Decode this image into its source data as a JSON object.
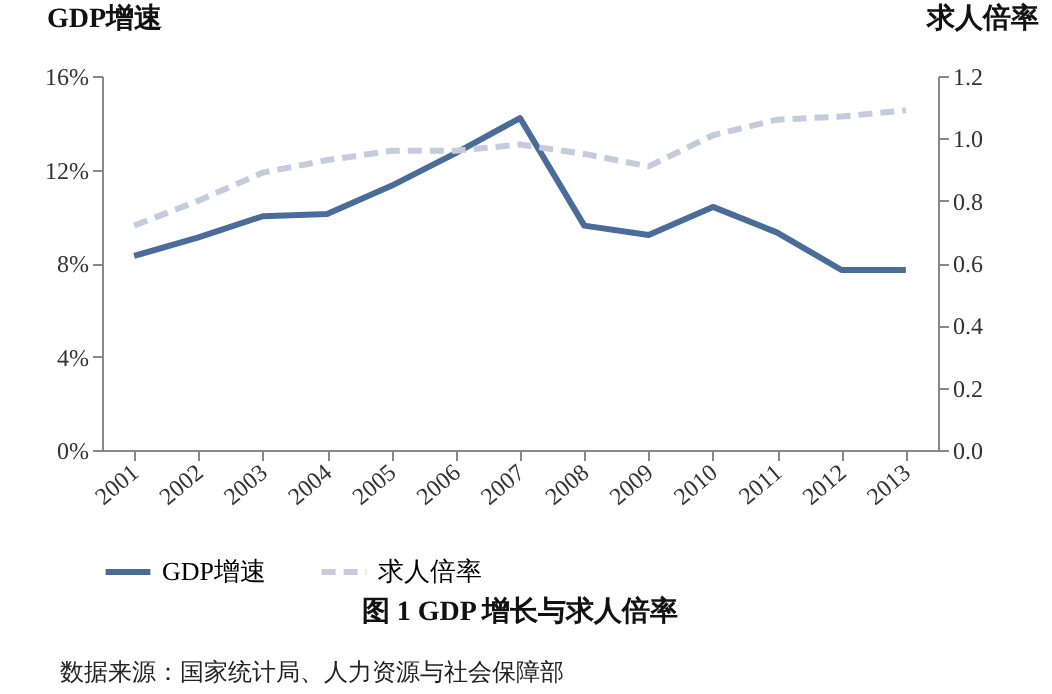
{
  "chart_data": {
    "type": "line",
    "title": "图 1  GDP 增长与求人倍率",
    "ylabel": "GDP增速",
    "y2label": "求人倍率",
    "annotations": [
      "数据来源：国家统计局、人力资源与社会保障部"
    ],
    "categories": [
      "2001",
      "2002",
      "2003",
      "2004",
      "2005",
      "2006",
      "2007",
      "2008",
      "2009",
      "2010",
      "2011",
      "2012",
      "2013"
    ],
    "series": [
      {
        "name": "GDP增速",
        "color": "#4a6c98",
        "line_style": "solid",
        "values": [
          8.3,
          9.1,
          10.0,
          10.1,
          11.3,
          12.7,
          14.2,
          9.6,
          9.2,
          10.4,
          9.3,
          7.7,
          7.7
        ]
      },
      {
        "name": "求人倍率",
        "color": "#c5cbdc",
        "line_style": "dashed",
        "axis": "y2",
        "values": [
          0.72,
          0.8,
          0.89,
          0.93,
          0.96,
          0.96,
          0.98,
          0.95,
          0.91,
          1.01,
          1.06,
          1.07,
          1.09
        ]
      }
    ],
    "ylim": [
      0,
      16
    ],
    "yticks": [
      {
        "value": 0,
        "label": "0%"
      },
      {
        "value": 4,
        "label": "4%"
      },
      {
        "value": 8,
        "label": "8%"
      },
      {
        "value": 12,
        "label": "12%"
      },
      {
        "value": 16,
        "label": "16%"
      }
    ],
    "y2lim": [
      0,
      1.2
    ],
    "y2ticks": [
      {
        "value": 0,
        "label": "0.0"
      },
      {
        "value": 0.2,
        "label": "0.2"
      },
      {
        "value": 0.4,
        "label": "0.4"
      },
      {
        "value": 0.6,
        "label": "0.6"
      },
      {
        "value": 0.8,
        "label": "0.8"
      },
      {
        "value": 1.0,
        "label": "1.0"
      },
      {
        "value": 1.2,
        "label": "1.2"
      }
    ],
    "legend": "bottom"
  }
}
